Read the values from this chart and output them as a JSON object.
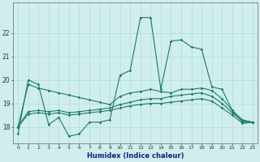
{
  "xlabel": "Humidex (Indice chaleur)",
  "x_values": [
    0,
    1,
    2,
    3,
    4,
    5,
    6,
    7,
    8,
    9,
    10,
    11,
    12,
    13,
    14,
    15,
    16,
    17,
    18,
    19,
    20,
    21,
    22,
    23
  ],
  "line1": [
    17.7,
    20.0,
    19.8,
    18.1,
    18.4,
    17.6,
    17.7,
    18.2,
    18.2,
    18.3,
    20.2,
    20.4,
    22.65,
    22.65,
    19.6,
    21.65,
    21.7,
    21.4,
    21.3,
    19.7,
    19.6,
    18.7,
    18.2,
    18.2
  ],
  "line2": [
    18.0,
    19.8,
    19.65,
    19.55,
    19.45,
    19.35,
    19.25,
    19.15,
    19.05,
    18.95,
    19.3,
    19.45,
    19.5,
    19.6,
    19.5,
    19.45,
    19.6,
    19.6,
    19.65,
    19.55,
    19.2,
    18.7,
    18.3,
    18.2
  ],
  "line3": [
    18.0,
    18.65,
    18.7,
    18.65,
    18.7,
    18.6,
    18.65,
    18.7,
    18.75,
    18.8,
    18.95,
    19.05,
    19.15,
    19.2,
    19.2,
    19.3,
    19.35,
    19.4,
    19.45,
    19.3,
    19.0,
    18.6,
    18.25,
    18.2
  ],
  "line4": [
    18.0,
    18.55,
    18.6,
    18.55,
    18.6,
    18.5,
    18.55,
    18.6,
    18.65,
    18.7,
    18.8,
    18.9,
    18.95,
    19.0,
    19.0,
    19.05,
    19.1,
    19.15,
    19.2,
    19.1,
    18.8,
    18.5,
    18.15,
    18.2
  ],
  "line_color": "#1a7a6a",
  "bg_color": "#d0eeec",
  "grid_color": "#b0ddd8",
  "ylim": [
    17.3,
    23.3
  ],
  "yticks": [
    18,
    19,
    20,
    21,
    22
  ],
  "marker": "D",
  "markersize": 1.8,
  "linewidth": 0.8
}
